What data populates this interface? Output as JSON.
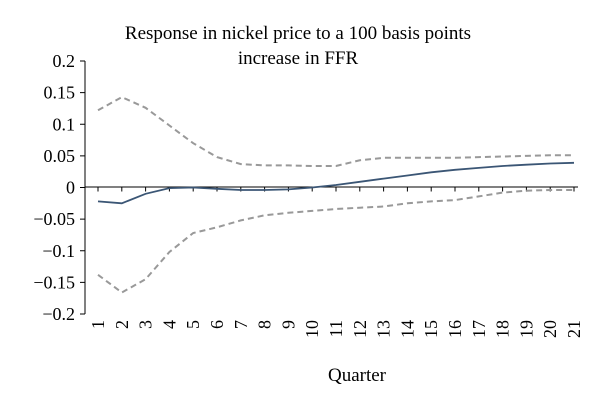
{
  "chart_data": {
    "type": "line",
    "title_lines": [
      "Response in nickel price to a 100 basis points",
      "increase in FFR"
    ],
    "xlabel": "Quarter",
    "ylabel": "",
    "categories": [
      "1",
      "2",
      "3",
      "4",
      "5",
      "6",
      "7",
      "8",
      "9",
      "10",
      "11",
      "12",
      "13",
      "14",
      "15",
      "16",
      "17",
      "18",
      "19",
      "20",
      "21"
    ],
    "ylim": [
      -0.2,
      0.2
    ],
    "yticks": [
      0.2,
      0.15,
      0.1,
      0.05,
      0,
      -0.05,
      -0.1,
      -0.15,
      -0.2
    ],
    "ytick_labels": [
      "0.2",
      "0.15",
      "0.1",
      "0.05",
      "0",
      "−0.05",
      "−0.1",
      "−0.15",
      "−0.2"
    ],
    "grid": false,
    "series": [
      {
        "style": "solid",
        "color": "#3b5675",
        "values": [
          -0.022,
          -0.025,
          -0.01,
          -0.001,
          0.0,
          -0.002,
          -0.004,
          -0.004,
          -0.003,
          0.0,
          0.004,
          0.009,
          0.014,
          0.019,
          0.024,
          0.028,
          0.031,
          0.034,
          0.036,
          0.038,
          0.039
        ]
      },
      {
        "style": "dashed",
        "color": "#999999",
        "values": [
          0.122,
          0.143,
          0.126,
          0.098,
          0.07,
          0.048,
          0.037,
          0.035,
          0.035,
          0.034,
          0.034,
          0.043,
          0.047,
          0.047,
          0.047,
          0.047,
          0.048,
          0.049,
          0.05,
          0.051,
          0.051
        ]
      },
      {
        "style": "dashed",
        "color": "#999999",
        "values": [
          -0.138,
          -0.166,
          -0.145,
          -0.102,
          -0.072,
          -0.063,
          -0.052,
          -0.044,
          -0.04,
          -0.037,
          -0.034,
          -0.032,
          -0.03,
          -0.025,
          -0.022,
          -0.02,
          -0.014,
          -0.008,
          -0.005,
          -0.004,
          -0.004
        ]
      }
    ]
  }
}
